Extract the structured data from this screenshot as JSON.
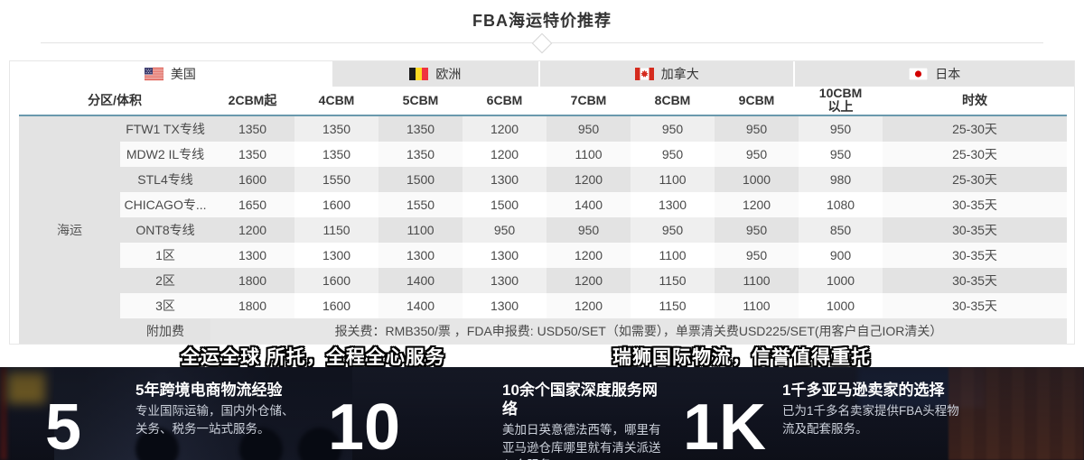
{
  "page_title": "FBA海运特价推荐",
  "tabs": [
    {
      "label": "美国",
      "flag_icon": "us-flag-icon",
      "active": true
    },
    {
      "label": "欧洲",
      "flag_icon": "belgium-flag-icon",
      "active": false
    },
    {
      "label": "加拿大",
      "flag_icon": "canada-flag-icon",
      "active": false
    },
    {
      "label": "日本",
      "flag_icon": "japan-flag-icon",
      "active": false
    }
  ],
  "table": {
    "category_label": "海运",
    "headers": [
      "分区/体积",
      "2CBM起",
      "4CBM",
      "5CBM",
      "6CBM",
      "7CBM",
      "8CBM",
      "9CBM",
      "10CBM以上",
      "时效"
    ],
    "rows": [
      {
        "label": "FTW1 TX专线",
        "values": [
          "1350",
          "1350",
          "1350",
          "1200",
          "950",
          "950",
          "950",
          "950"
        ],
        "lead_time": "25-30天"
      },
      {
        "label": "MDW2 IL专线",
        "values": [
          "1350",
          "1350",
          "1350",
          "1200",
          "1100",
          "950",
          "950",
          "950"
        ],
        "lead_time": "25-30天"
      },
      {
        "label": "STL4专线",
        "values": [
          "1600",
          "1550",
          "1500",
          "1300",
          "1200",
          "1100",
          "1000",
          "980"
        ],
        "lead_time": "25-30天"
      },
      {
        "label": "CHICAGO专...",
        "values": [
          "1650",
          "1600",
          "1550",
          "1500",
          "1400",
          "1300",
          "1200",
          "1080"
        ],
        "lead_time": "30-35天"
      },
      {
        "label": "ONT8专线",
        "values": [
          "1200",
          "1150",
          "1100",
          "950",
          "950",
          "950",
          "950",
          "850"
        ],
        "lead_time": "30-35天"
      },
      {
        "label": "1区",
        "values": [
          "1300",
          "1300",
          "1300",
          "1300",
          "1200",
          "1100",
          "950",
          "900"
        ],
        "lead_time": "30-35天"
      },
      {
        "label": "2区",
        "values": [
          "1800",
          "1600",
          "1400",
          "1300",
          "1200",
          "1150",
          "1100",
          "1000"
        ],
        "lead_time": "30-35天"
      },
      {
        "label": "3区",
        "values": [
          "1800",
          "1600",
          "1400",
          "1300",
          "1200",
          "1150",
          "1100",
          "1000"
        ],
        "lead_time": "30-35天"
      }
    ],
    "surcharge": {
      "label": "附加费",
      "text": "报关费：RMB350/票 ，FDA申报费: USD50/SET（如需要），单票清关费USD225/SET(用客户自己IOR清关）"
    }
  },
  "slogans": {
    "left": "全运全球 所托，全程全心服务",
    "right": "瑞狮国际物流，信誉值得重托"
  },
  "stats": [
    {
      "number": "5",
      "heading": "5年跨境电商物流经验",
      "body": "专业国际运输，国内外仓储、关务、税务一站式服务。"
    },
    {
      "number": "10",
      "heading": "10余个国家深度服务网络",
      "body": "美加日英意德法西等，哪里有亚马逊仓库哪里就有清关派送入仓服务。"
    },
    {
      "number": "1K",
      "heading": "1千多亚马逊卖家的选择",
      "body": "已为1千多名卖家提供FBA头程物流及配套服务。"
    }
  ],
  "colors": {
    "header_rule": "#6a99ad",
    "tab_inactive_bg": "#e4e4e4",
    "cell_dark": "#e3e3e3",
    "cell_mid": "#efefef",
    "cell_light": "#fafafa",
    "hero_bg": "#161a26",
    "text_dark": "#333333",
    "stat_text": "#ffffff",
    "flag_red": "#d52b1e",
    "flag_blue": "#3c3b6e",
    "belgium_yellow": "#fdda24"
  }
}
